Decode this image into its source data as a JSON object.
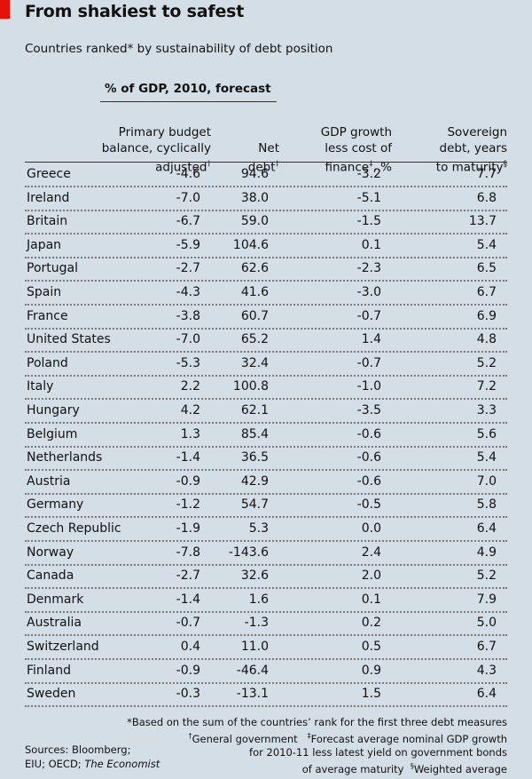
{
  "title": "From shakiest to safest",
  "subtitle": "Countries ranked* by sustainability of debt position",
  "group_header": "% of GDP, 2010, forecast",
  "columns": [
    {
      "label": "Primary budget\nbalance, cyclically\nadjusted",
      "mark": "†"
    },
    {
      "label": "Net\ndebt",
      "mark": "†"
    },
    {
      "label": "GDP growth\nless cost of\nfinance",
      "mark": "‡",
      "suffix": ", %"
    },
    {
      "label": "Sovereign\ndebt, years\nto maturity",
      "mark": "§"
    }
  ],
  "chart_data": {
    "type": "table",
    "rows": [
      {
        "country": "Greece",
        "values": [
          "-4.6",
          "94.6",
          "-3.2",
          "7.7"
        ]
      },
      {
        "country": "Ireland",
        "values": [
          "-7.0",
          "38.0",
          "-5.1",
          "6.8"
        ]
      },
      {
        "country": "Britain",
        "values": [
          "-6.7",
          "59.0",
          "-1.5",
          "13.7"
        ]
      },
      {
        "country": "Japan",
        "values": [
          "-5.9",
          "104.6",
          "0.1",
          "5.4"
        ]
      },
      {
        "country": "Portugal",
        "values": [
          "-2.7",
          "62.6",
          "-2.3",
          "6.5"
        ]
      },
      {
        "country": "Spain",
        "values": [
          "-4.3",
          "41.6",
          "-3.0",
          "6.7"
        ]
      },
      {
        "country": "France",
        "values": [
          "-3.8",
          "60.7",
          "-0.7",
          "6.9"
        ]
      },
      {
        "country": "United States",
        "values": [
          "-7.0",
          "65.2",
          "1.4",
          "4.8"
        ]
      },
      {
        "country": "Poland",
        "values": [
          "-5.3",
          "32.4",
          "-0.7",
          "5.2"
        ]
      },
      {
        "country": "Italy",
        "values": [
          "2.2",
          "100.8",
          "-1.0",
          "7.2"
        ]
      },
      {
        "country": "Hungary",
        "values": [
          "4.2",
          "62.1",
          "-3.5",
          "3.3"
        ]
      },
      {
        "country": "Belgium",
        "values": [
          "1.3",
          "85.4",
          "-0.6",
          "5.6"
        ]
      },
      {
        "country": "Netherlands",
        "values": [
          "-1.4",
          "36.5",
          "-0.6",
          "5.4"
        ]
      },
      {
        "country": "Austria",
        "values": [
          "-0.9",
          "42.9",
          "-0.6",
          "7.0"
        ]
      },
      {
        "country": "Germany",
        "values": [
          "-1.2",
          "54.7",
          "-0.5",
          "5.8"
        ]
      },
      {
        "country": "Czech Republic",
        "values": [
          "-1.9",
          "5.3",
          "0.0",
          "6.4"
        ]
      },
      {
        "country": "Norway",
        "values": [
          "-7.8",
          "-143.6",
          "2.4",
          "4.9"
        ]
      },
      {
        "country": "Canada",
        "values": [
          "-2.7",
          "32.6",
          "2.0",
          "5.2"
        ]
      },
      {
        "country": "Denmark",
        "values": [
          "-1.4",
          "1.6",
          "0.1",
          "7.9"
        ]
      },
      {
        "country": "Australia",
        "values": [
          "-0.7",
          "-1.3",
          "0.2",
          "5.0"
        ]
      },
      {
        "country": "Switzerland",
        "values": [
          "0.4",
          "11.0",
          "0.5",
          "6.7"
        ]
      },
      {
        "country": "Finland",
        "values": [
          "-0.9",
          "-46.4",
          "0.9",
          "4.3"
        ]
      },
      {
        "country": "Sweden",
        "values": [
          "-0.3",
          "-13.1",
          "1.5",
          "6.4"
        ]
      }
    ]
  },
  "footnotes": {
    "star": "*Based on the sum of the countries’ rank for the first three debt measures",
    "dagger_mark": "†",
    "dagger": "General government",
    "ddagger_mark": "‡",
    "ddagger_1": "Forecast average nominal GDP growth",
    "ddagger_2": "for 2010-11 less latest yield on government bonds",
    "ddagger_3": "of average maturity",
    "section_mark": "§",
    "section": "Weighted average"
  },
  "sources": {
    "line1": "Sources: Bloomberg;",
    "line2_prefix": "EIU; OECD; ",
    "line2_italic": "The Economist"
  }
}
